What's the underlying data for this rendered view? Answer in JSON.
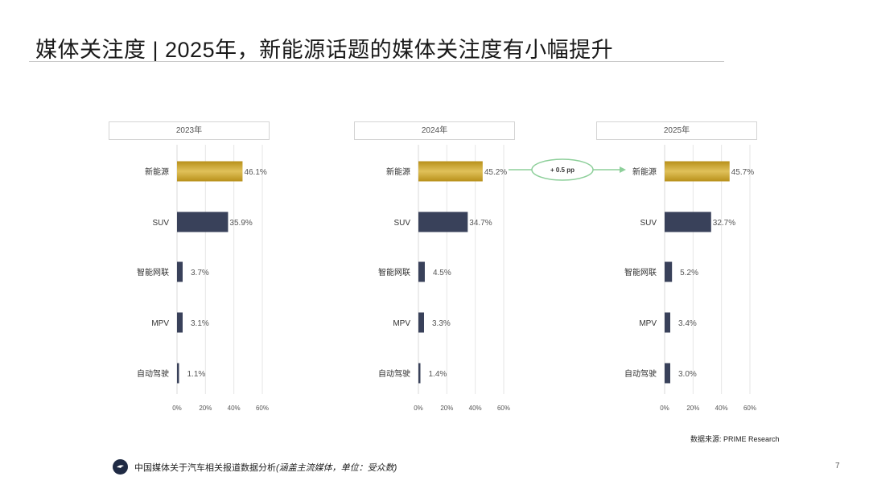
{
  "header": {
    "title": "媒体关注度 | 2025年，新能源话题的媒体关注度有小幅提升"
  },
  "colors": {
    "gold_dark": "#b8901a",
    "gold_light": "#e0c15a",
    "navy": "#39415a",
    "arrow_green": "#8dcf9a",
    "grid": "#e6e6e6"
  },
  "chart_data": [
    {
      "type": "bar",
      "title": "2023年",
      "categories": [
        "新能源",
        "SUV",
        "智能网联",
        "MPV",
        "自动驾驶"
      ],
      "values": [
        46.1,
        35.9,
        3.7,
        3.1,
        1.1
      ],
      "value_labels": [
        "46.1%",
        "35.9%",
        "3.7%",
        "3.1%",
        "1.1%"
      ],
      "xlim": [
        0,
        60
      ],
      "xticks": [
        "0%",
        "20%",
        "40%",
        "60%"
      ],
      "grid": true,
      "orientation": "horizontal"
    },
    {
      "type": "bar",
      "title": "2024年",
      "categories": [
        "新能源",
        "SUV",
        "智能网联",
        "MPV",
        "自动驾驶"
      ],
      "values": [
        45.2,
        34.7,
        4.5,
        3.3,
        1.4
      ],
      "value_labels": [
        "45.2%",
        "34.7%",
        "4.5%",
        "3.3%",
        "1.4%"
      ],
      "xlim": [
        0,
        60
      ],
      "xticks": [
        "0%",
        "20%",
        "40%",
        "60%"
      ],
      "grid": true,
      "orientation": "horizontal"
    },
    {
      "type": "bar",
      "title": "2025年",
      "categories": [
        "新能源",
        "SUV",
        "智能网联",
        "MPV",
        "自动驾驶"
      ],
      "values": [
        45.7,
        32.7,
        5.2,
        3.4,
        3.0
      ],
      "value_labels": [
        "45.7%",
        "32.7%",
        "5.2%",
        "3.4%",
        "3.0%"
      ],
      "xlim": [
        0,
        60
      ],
      "xticks": [
        "0%",
        "20%",
        "40%",
        "60%"
      ],
      "grid": true,
      "orientation": "horizontal"
    }
  ],
  "annotation": {
    "label": "+ 0.5 pp"
  },
  "source": "数据来源: PRIME Research",
  "footer": {
    "text": "中国媒体关于汽车相关报道数据分析",
    "note": "(涵盖主流媒体，单位：受众数)",
    "page_number": "7"
  }
}
